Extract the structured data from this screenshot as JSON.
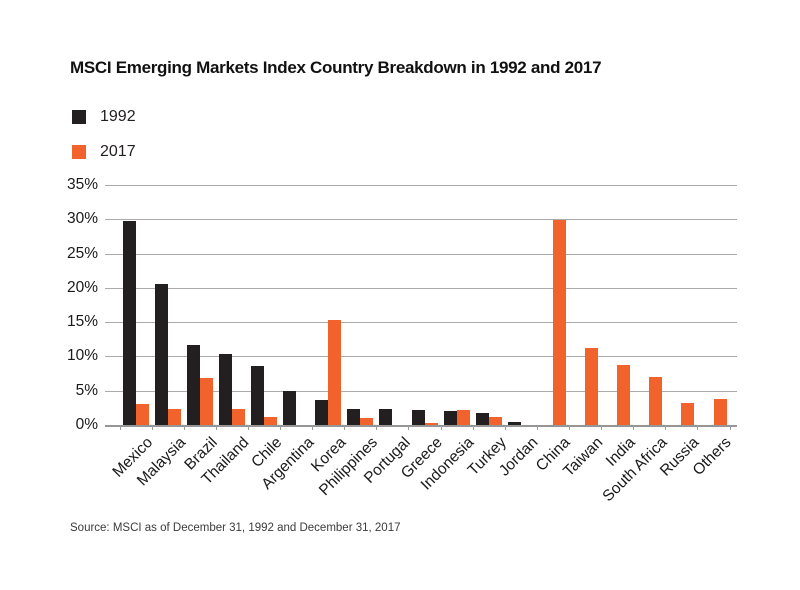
{
  "title": "MSCI Emerging Markets Index Country Breakdown in 1992 and 2017",
  "legend": {
    "items": [
      {
        "label": "1992",
        "color": "#231f20"
      },
      {
        "label": "2017",
        "color": "#f2622c"
      }
    ]
  },
  "source": "Source: MSCI as of December 31, 1992 and December 31, 2017",
  "colors": {
    "series_1992": "#231f20",
    "series_2017": "#f2622c",
    "gridline": "#ababab",
    "axis": "#969696",
    "text": "#1a1a1a"
  },
  "chart_data": {
    "type": "bar",
    "title": "MSCI Emerging Markets Index Country Breakdown in 1992 and 2017",
    "categories": [
      "Mexico",
      "Malaysia",
      "Brazil",
      "Thailand",
      "Chile",
      "Argentina",
      "Korea",
      "Philippines",
      "Portugal",
      "Greece",
      "Indonesia",
      "Turkey",
      "Jordan",
      "China",
      "Taiwan",
      "India",
      "South Africa",
      "Russia",
      "Others"
    ],
    "series": [
      {
        "name": "1992",
        "color": "#231f20",
        "values": [
          29.8,
          20.5,
          11.7,
          10.3,
          8.6,
          4.9,
          3.6,
          2.3,
          2.3,
          2.2,
          2.0,
          1.8,
          0.4,
          0,
          0,
          0,
          0,
          0,
          0
        ]
      },
      {
        "name": "2017",
        "color": "#f2622c",
        "values": [
          3.0,
          2.4,
          6.8,
          2.3,
          1.2,
          0,
          15.3,
          1.0,
          0,
          0.3,
          2.2,
          1.1,
          0,
          29.9,
          11.2,
          8.8,
          7.0,
          3.2,
          3.8
        ]
      }
    ],
    "xlabel": "",
    "ylabel": "",
    "ylim": [
      0,
      35
    ],
    "y_tick_step": 5,
    "y_tick_labels": [
      "0%",
      "5%",
      "10%",
      "15%",
      "20%",
      "25%",
      "30%",
      "35%"
    ],
    "grid": true,
    "legend_position": "top-left",
    "x_tick_rotation": -45
  }
}
